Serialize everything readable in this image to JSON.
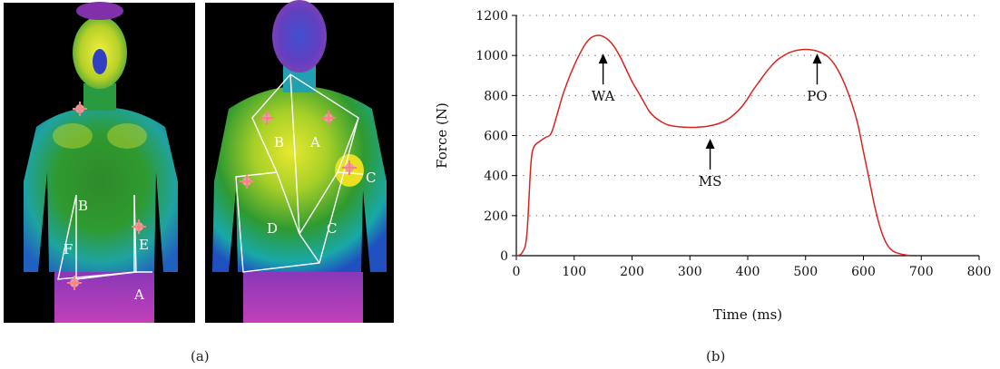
{
  "panels": {
    "a": {
      "caption": "(a)",
      "front_labels": [
        "B",
        "F",
        "E",
        "A"
      ],
      "back_labels": [
        "B",
        "A",
        "C",
        "D",
        "C"
      ]
    },
    "b": {
      "caption": "(b)"
    }
  },
  "colors": {
    "curve": "#d9231f",
    "axis": "#000000",
    "grid": "#555555"
  },
  "chart_data": {
    "type": "line",
    "title": "",
    "xlabel": "Time (ms)",
    "ylabel": "Force (N)",
    "xlim": [
      0,
      800
    ],
    "ylim": [
      0,
      1200
    ],
    "xticks": [
      0,
      100,
      200,
      300,
      400,
      500,
      600,
      700,
      800
    ],
    "yticks": [
      0,
      200,
      400,
      600,
      800,
      1000,
      1200
    ],
    "grid": "horizontal-dotted",
    "series": [
      {
        "x": [
          0,
          10,
          18,
          25,
          30,
          40,
          50,
          60,
          70,
          80,
          90,
          100,
          110,
          120,
          130,
          140,
          150,
          160,
          170,
          180,
          190,
          200,
          210,
          220,
          230,
          240,
          250,
          260,
          270,
          280,
          290,
          300,
          310,
          320,
          330,
          340,
          350,
          360,
          370,
          380,
          390,
          400,
          410,
          420,
          430,
          440,
          450,
          460,
          470,
          480,
          490,
          500,
          510,
          520,
          530,
          540,
          550,
          560,
          570,
          580,
          590,
          600,
          610,
          620,
          630,
          640,
          650,
          660,
          670,
          680
        ],
        "y": [
          0,
          15,
          100,
          450,
          540,
          570,
          590,
          610,
          700,
          800,
          880,
          950,
          1010,
          1060,
          1090,
          1100,
          1095,
          1075,
          1040,
          990,
          930,
          870,
          820,
          770,
          720,
          690,
          670,
          655,
          648,
          644,
          642,
          641,
          641,
          643,
          646,
          652,
          660,
          672,
          690,
          715,
          745,
          785,
          830,
          870,
          910,
          945,
          975,
          995,
          1012,
          1022,
          1028,
          1030,
          1028,
          1022,
          1010,
          990,
          955,
          905,
          840,
          760,
          660,
          520,
          380,
          240,
          130,
          60,
          25,
          12,
          5,
          0
        ]
      }
    ],
    "annotations": [
      {
        "text": "WA",
        "x": 150,
        "y": 1000
      },
      {
        "text": "MS",
        "x": 335,
        "y": 575
      },
      {
        "text": "PO",
        "x": 520,
        "y": 1000
      }
    ]
  }
}
